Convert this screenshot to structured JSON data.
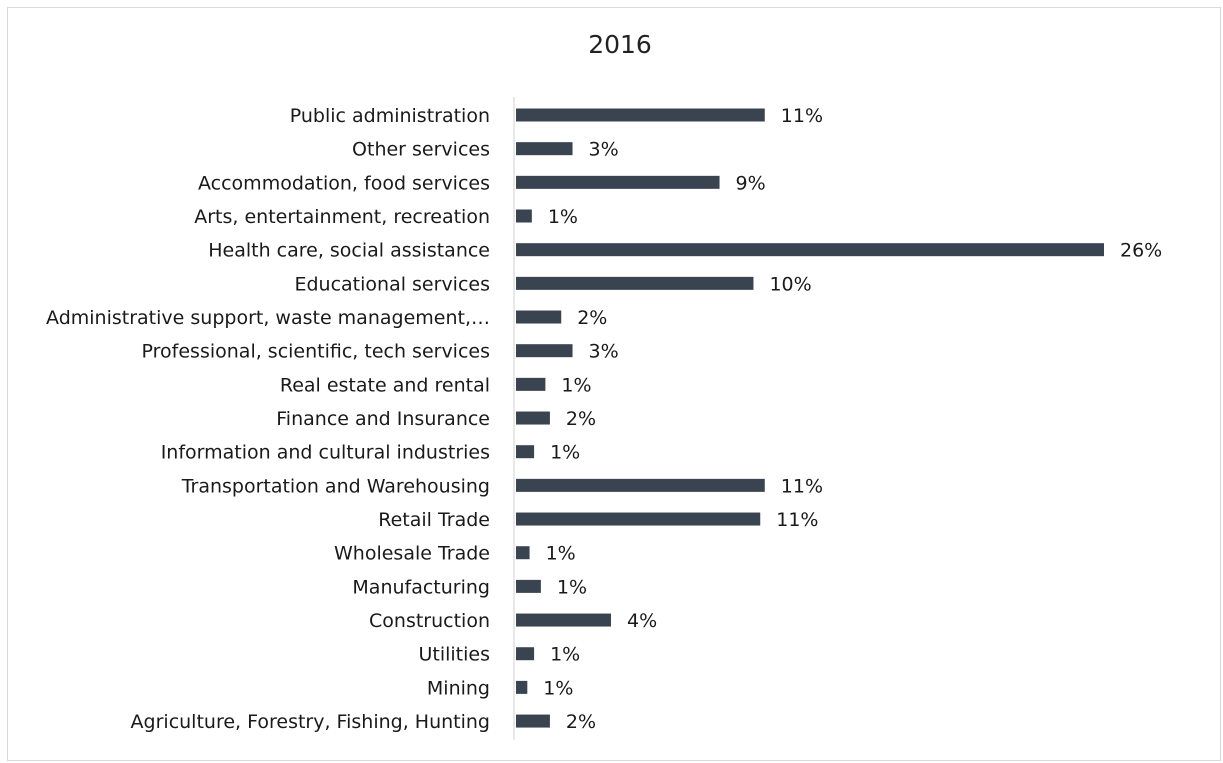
{
  "chart_data": {
    "type": "bar",
    "orientation": "horizontal",
    "title": "2016",
    "xlabel": "",
    "ylabel": "",
    "xlim": [
      0,
      26
    ],
    "grid": false,
    "legend": "none",
    "bar_color": "#3a4350",
    "categories": [
      "Public administration",
      "Other services",
      "Accommodation, food services",
      "Arts, entertainment, recreation",
      "Health care, social assistance",
      "Educational services",
      "Administrative support, waste management,…",
      "Professional, scientific, tech services",
      "Real estate and rental",
      "Finance and Insurance",
      "Information and cultural industries",
      "Transportation and Warehousing",
      "Retail Trade",
      "Wholesale Trade",
      "Manufacturing",
      "Construction",
      "Utilities",
      "Mining",
      "Agriculture, Forestry, Fishing,  Hunting"
    ],
    "values": [
      11,
      2.5,
      9,
      0.7,
      26,
      10.5,
      2,
      2.5,
      1.3,
      1.5,
      0.8,
      11,
      10.8,
      0.6,
      1.1,
      4.2,
      0.8,
      0.5,
      1.5
    ],
    "data_labels": [
      "11%",
      "3%",
      "9%",
      "1%",
      "26%",
      "10%",
      "2%",
      "3%",
      "1%",
      "2%",
      "1%",
      "11%",
      "11%",
      "1%",
      "1%",
      "4%",
      "1%",
      "1%",
      "2%"
    ]
  }
}
